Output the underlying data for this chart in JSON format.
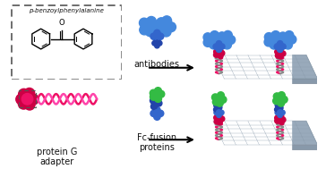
{
  "bg_color": "#ffffff",
  "crimson": "#cc0044",
  "magenta": "#ee1166",
  "pink_light": "#ff44aa",
  "blue_dark": "#2244aa",
  "blue_med": "#3366cc",
  "blue_light": "#4488dd",
  "green": "#33bb44",
  "gray_platform": "#99aabb",
  "gray_grid": "#6677aa",
  "gray_side": "#7788aa",
  "teal_dashed": "#88aaaa",
  "text_color": "#111111",
  "label_antibodies": "antibodies",
  "label_fc": "Fc-fusion\nproteins",
  "label_protein_g": "protein G\nadapter",
  "label_bpa": "p-benzoylphenylalanine",
  "helix_col1": "#ee1166",
  "helix_col2": "#999999"
}
